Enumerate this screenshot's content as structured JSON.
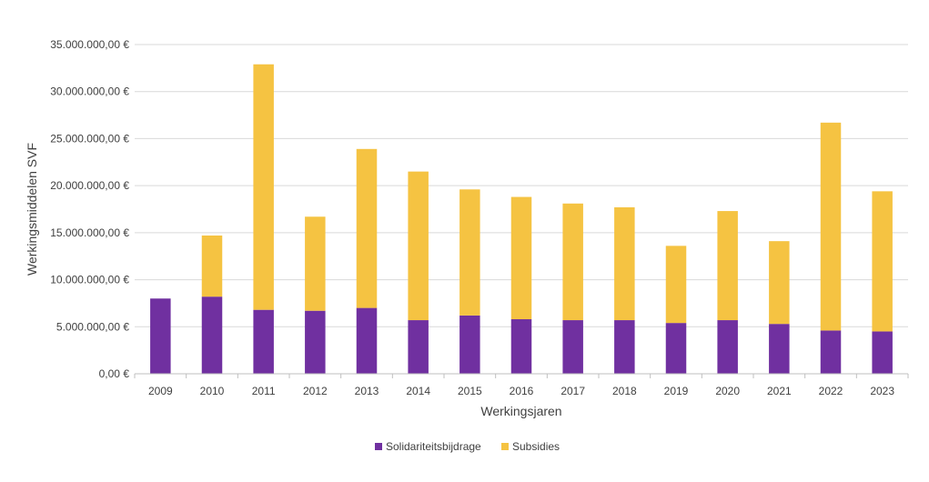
{
  "chart_data": {
    "type": "bar",
    "stacked": true,
    "title": "",
    "xlabel": "Werkingsjaren",
    "ylabel": "Werkingsmiddelen SVF",
    "ylim": [
      0,
      35000000
    ],
    "ytick_step": 5000000,
    "ytick_labels": [
      "0,00 €",
      "5.000.000,00 €",
      "10.000.000,00 €",
      "15.000.000,00 €",
      "20.000.000,00 €",
      "25.000.000,00 €",
      "30.000.000,00 €",
      "35.000.000,00 €"
    ],
    "grid": true,
    "legend_position": "bottom",
    "categories": [
      "2009",
      "2010",
      "2011",
      "2012",
      "2013",
      "2014",
      "2015",
      "2016",
      "2017",
      "2018",
      "2019",
      "2020",
      "2021",
      "2022",
      "2023"
    ],
    "series": [
      {
        "name": "Solidariteitsbijdrage",
        "color": "#7030a0",
        "values": [
          8000000,
          8200000,
          6800000,
          6700000,
          7000000,
          5700000,
          6200000,
          5800000,
          5700000,
          5700000,
          5400000,
          5700000,
          5300000,
          4600000,
          4500000
        ]
      },
      {
        "name": "Subsidies",
        "color": "#f5c342",
        "values": [
          0,
          6500000,
          26100000,
          10000000,
          16900000,
          15800000,
          13400000,
          13000000,
          12400000,
          12000000,
          8200000,
          11600000,
          8800000,
          22100000,
          14900000
        ]
      }
    ]
  },
  "colors": {
    "grid": "#d9d9d9",
    "axis": "#bfbfbf",
    "text": "#404040"
  }
}
